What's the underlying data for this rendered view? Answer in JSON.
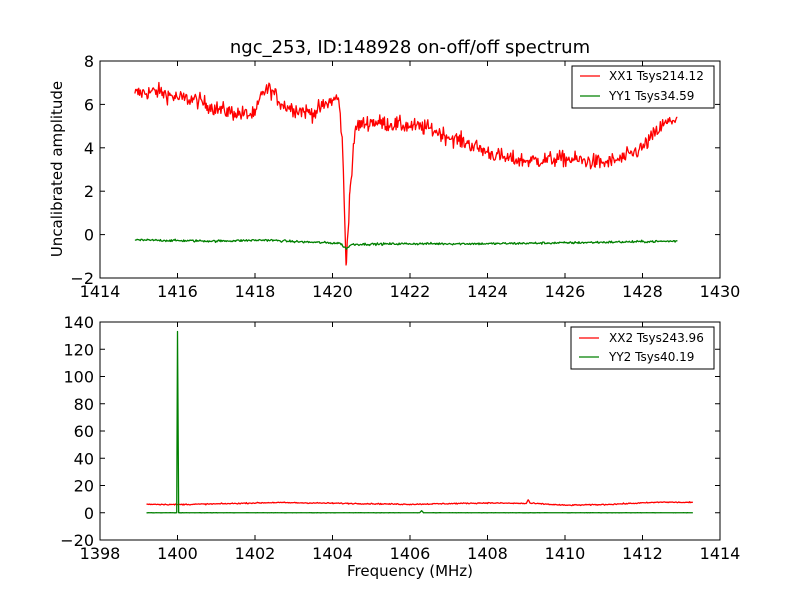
{
  "chart_data": [
    {
      "type": "line",
      "title": "ngc_253, ID:148928 on-off/off spectrum",
      "xlabel": "",
      "ylabel": "Uncalibrated amplitude",
      "xlim": [
        1414,
        1430
      ],
      "ylim": [
        -2,
        8
      ],
      "xticks": [
        "1414",
        "1416",
        "1418",
        "1420",
        "1422",
        "1424",
        "1426",
        "1428",
        "1430"
      ],
      "yticks": [
        "−2",
        "0",
        "2",
        "4",
        "6",
        "8"
      ],
      "legend_position": "top-right",
      "grid": false,
      "series": [
        {
          "name": "XX1 Tsys214.12",
          "color": "#ff0000",
          "x_range": [
            1414.9,
            1428.9
          ],
          "noise": 0.35,
          "points": [
            [
              1414.9,
              6.5
            ],
            [
              1415.5,
              6.6
            ],
            [
              1416.0,
              6.3
            ],
            [
              1416.5,
              6.2
            ],
            [
              1417.0,
              5.8
            ],
            [
              1417.5,
              5.6
            ],
            [
              1418.0,
              5.5
            ],
            [
              1418.2,
              6.6
            ],
            [
              1418.4,
              6.7
            ],
            [
              1418.7,
              6.0
            ],
            [
              1419.0,
              5.8
            ],
            [
              1419.5,
              5.6
            ],
            [
              1420.0,
              6.2
            ],
            [
              1420.15,
              6.3
            ],
            [
              1420.25,
              4.5
            ],
            [
              1420.35,
              -1.4
            ],
            [
              1420.45,
              2.0
            ],
            [
              1420.6,
              5.0
            ],
            [
              1421.0,
              5.2
            ],
            [
              1422.0,
              5.0
            ],
            [
              1422.5,
              4.9
            ],
            [
              1423.0,
              4.5
            ],
            [
              1423.5,
              4.2
            ],
            [
              1424.0,
              3.8
            ],
            [
              1424.5,
              3.5
            ],
            [
              1425.0,
              3.4
            ],
            [
              1426.0,
              3.5
            ],
            [
              1427.0,
              3.3
            ],
            [
              1427.5,
              3.5
            ],
            [
              1428.0,
              4.0
            ],
            [
              1428.5,
              5.0
            ],
            [
              1428.9,
              5.4
            ]
          ]
        },
        {
          "name": "YY1 Tsys34.59",
          "color": "#008000",
          "x_range": [
            1414.9,
            1428.9
          ],
          "noise": 0.05,
          "points": [
            [
              1414.9,
              -0.25
            ],
            [
              1417.0,
              -0.3
            ],
            [
              1418.3,
              -0.25
            ],
            [
              1419.0,
              -0.32
            ],
            [
              1420.2,
              -0.4
            ],
            [
              1420.35,
              -0.65
            ],
            [
              1420.5,
              -0.45
            ],
            [
              1422.0,
              -0.42
            ],
            [
              1424.0,
              -0.42
            ],
            [
              1426.0,
              -0.38
            ],
            [
              1428.9,
              -0.3
            ]
          ]
        }
      ]
    },
    {
      "type": "line",
      "title": "",
      "xlabel": "Frequency (MHz)",
      "ylabel": "",
      "xlim": [
        1398,
        1414
      ],
      "ylim": [
        -20,
        140
      ],
      "xticks": [
        "1398",
        "1400",
        "1402",
        "1404",
        "1406",
        "1408",
        "1410",
        "1412",
        "1414"
      ],
      "yticks": [
        "−20",
        "0",
        "20",
        "40",
        "60",
        "80",
        "100",
        "120",
        "140"
      ],
      "legend_position": "top-right",
      "grid": false,
      "series": [
        {
          "name": "XX2 Tsys243.96",
          "color": "#ff0000",
          "x_range": [
            1399.2,
            1413.3
          ],
          "noise": 0.4,
          "points": [
            [
              1399.2,
              6.3
            ],
            [
              1400.0,
              6.0
            ],
            [
              1401.0,
              6.5
            ],
            [
              1402.5,
              7.5
            ],
            [
              1404.0,
              7.0
            ],
            [
              1406.0,
              6.2
            ],
            [
              1408.0,
              7.2
            ],
            [
              1409.0,
              6.8
            ],
            [
              1409.05,
              9.5
            ],
            [
              1409.1,
              7.0
            ],
            [
              1410.0,
              5.5
            ],
            [
              1411.0,
              6.0
            ],
            [
              1412.5,
              7.8
            ],
            [
              1413.3,
              7.5
            ]
          ]
        },
        {
          "name": "YY2 Tsys40.19",
          "color": "#008000",
          "x_range": [
            1399.2,
            1413.3
          ],
          "noise": 0.05,
          "points": [
            [
              1399.2,
              0.0
            ],
            [
              1399.98,
              0.0
            ],
            [
              1400.0,
              133.0
            ],
            [
              1400.03,
              0.0
            ],
            [
              1406.25,
              0.0
            ],
            [
              1406.3,
              1.5
            ],
            [
              1406.35,
              0.0
            ],
            [
              1413.3,
              0.0
            ]
          ]
        }
      ]
    }
  ]
}
